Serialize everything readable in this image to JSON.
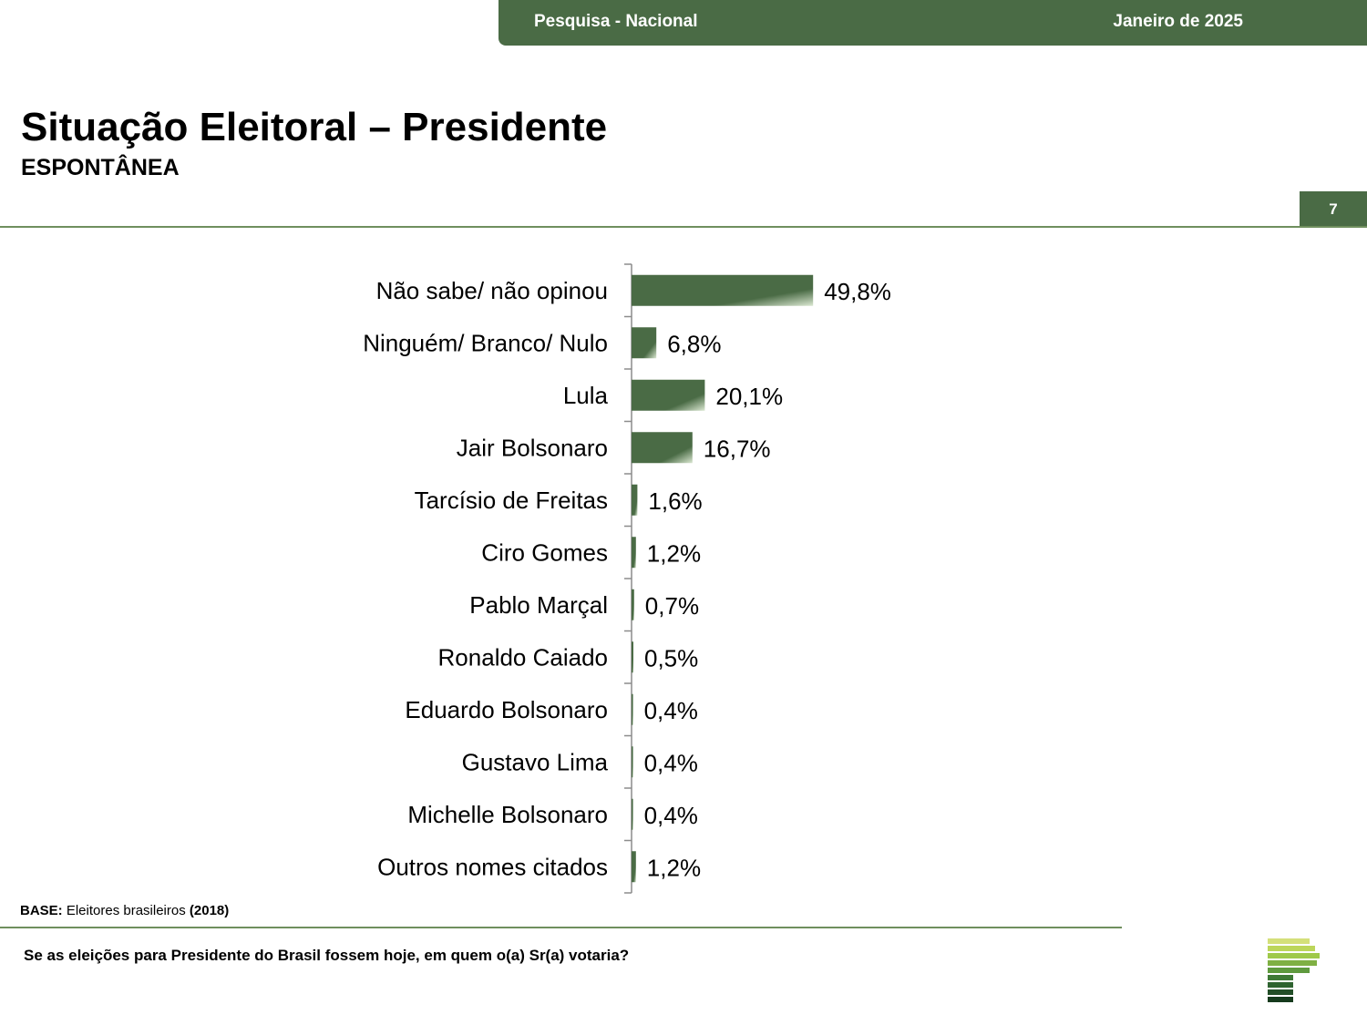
{
  "header": {
    "survey_label": "Pesquisa - Nacional",
    "date_label": "Janeiro de 2025"
  },
  "page": {
    "title": "Situação Eleitoral – Presidente",
    "subtitle": "ESPONTÂNEA",
    "number": "7"
  },
  "footer": {
    "base_label": "BASE:",
    "base_text": "Eleitores brasileiros",
    "base_count": "(2018)",
    "question": "Se as eleições para Presidente do Brasil fossem hoje, em quem o(a) Sr(a) votaria?"
  },
  "colors": {
    "accent": "#4a6b45",
    "bar_dark": "#4a6b45",
    "bar_light": "#dbe8d2"
  },
  "chart_data": {
    "type": "bar",
    "orientation": "horizontal",
    "categories": [
      "Não sabe/ não opinou",
      "Ninguém/ Branco/ Nulo",
      "Lula",
      "Jair Bolsonaro",
      "Tarcísio de Freitas",
      "Ciro Gomes",
      "Pablo Marçal",
      "Ronaldo Caiado",
      "Eduardo Bolsonaro",
      "Gustavo Lima",
      "Michelle Bolsonaro",
      "Outros nomes citados"
    ],
    "values": [
      49.8,
      6.8,
      20.1,
      16.7,
      1.6,
      1.2,
      0.7,
      0.5,
      0.4,
      0.4,
      0.4,
      1.2
    ],
    "value_labels": [
      "49,8%",
      "6,8%",
      "20,1%",
      "16,7%",
      "1,6%",
      "1,2%",
      "0,7%",
      "0,5%",
      "0,4%",
      "0,4%",
      "0,4%",
      "1,2%"
    ],
    "unit": "%",
    "xlim": [
      0,
      100
    ],
    "grid": false,
    "legend": "none"
  }
}
